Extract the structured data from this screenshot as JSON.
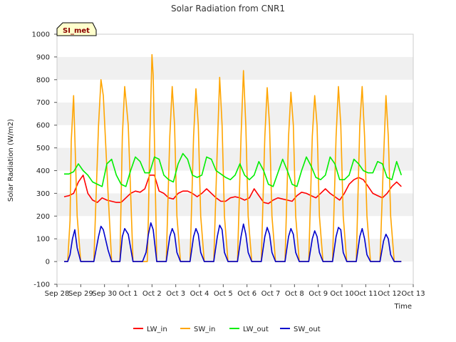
{
  "chart_data": {
    "type": "line",
    "title": "Solar Radiation from CNR1",
    "xlabel": "Time",
    "ylabel": "Solar Radiation (W/m2)",
    "ylim": [
      -100,
      1000
    ],
    "yticks": [
      -100,
      0,
      100,
      200,
      300,
      400,
      500,
      600,
      700,
      800,
      900,
      1000
    ],
    "xlim": [
      0,
      15
    ],
    "xticks": [
      {
        "x": 0,
        "label": "Sep 28"
      },
      {
        "x": 1,
        "label": "Sep 29"
      },
      {
        "x": 2,
        "label": "Sep 30"
      },
      {
        "x": 3,
        "label": "Oct 1"
      },
      {
        "x": 4,
        "label": "Oct 2"
      },
      {
        "x": 5,
        "label": "Oct 3"
      },
      {
        "x": 6,
        "label": "Oct 4"
      },
      {
        "x": 7,
        "label": "Oct 5"
      },
      {
        "x": 8,
        "label": "Oct 6"
      },
      {
        "x": 9,
        "label": "Oct 7"
      },
      {
        "x": 10,
        "label": "Oct 8"
      },
      {
        "x": 11,
        "label": "Oct 9"
      },
      {
        "x": 12,
        "label": "Oct 10"
      },
      {
        "x": 13,
        "label": "Oct 11"
      },
      {
        "x": 14,
        "label": "Oct 12"
      },
      {
        "x": 15,
        "label": "Oct 13"
      }
    ],
    "x_units": "days since Sep 28 00:00",
    "grid": "horizontal alternating bands",
    "legend_position": "bottom",
    "badge": "SI_met",
    "series": [
      {
        "name": "LW_in",
        "color": "#ff0000",
        "x": [
          0.3,
          0.5,
          0.7,
          0.9,
          1.1,
          1.3,
          1.5,
          1.7,
          1.9,
          2.1,
          2.3,
          2.5,
          2.7,
          2.9,
          3.1,
          3.3,
          3.5,
          3.7,
          3.9,
          4.1,
          4.3,
          4.5,
          4.7,
          4.9,
          5.1,
          5.3,
          5.5,
          5.7,
          5.9,
          6.1,
          6.3,
          6.5,
          6.7,
          6.9,
          7.1,
          7.3,
          7.5,
          7.7,
          7.9,
          8.1,
          8.3,
          8.5,
          8.7,
          8.9,
          9.1,
          9.3,
          9.5,
          9.7,
          9.9,
          10.1,
          10.3,
          10.5,
          10.7,
          10.9,
          11.1,
          11.3,
          11.5,
          11.7,
          11.9,
          12.1,
          12.3,
          12.5,
          12.7,
          12.9,
          13.1,
          13.3,
          13.5,
          13.7,
          13.9,
          14.1,
          14.3,
          14.5
        ],
        "y": [
          285,
          290,
          300,
          350,
          380,
          300,
          270,
          260,
          280,
          270,
          265,
          260,
          260,
          280,
          300,
          310,
          305,
          320,
          380,
          380,
          310,
          300,
          280,
          275,
          300,
          310,
          310,
          300,
          285,
          300,
          320,
          300,
          280,
          265,
          265,
          280,
          285,
          280,
          270,
          280,
          320,
          290,
          260,
          255,
          270,
          280,
          275,
          270,
          265,
          290,
          305,
          300,
          290,
          280,
          300,
          320,
          300,
          285,
          270,
          300,
          340,
          360,
          370,
          360,
          330,
          300,
          290,
          280,
          300,
          330,
          350,
          330
        ]
      },
      {
        "name": "SW_in",
        "color": "#ffa500",
        "x": [
          0.3,
          0.45,
          0.55,
          0.6,
          0.7,
          0.85,
          1.0,
          1.2,
          1.4,
          1.55,
          1.75,
          1.85,
          1.95,
          2.15,
          2.3,
          2.5,
          2.65,
          2.75,
          2.85,
          3.0,
          3.2,
          3.4,
          3.6,
          3.8,
          3.85,
          3.9,
          4.0,
          4.05,
          4.2,
          4.4,
          4.6,
          4.75,
          4.85,
          4.95,
          5.05,
          5.2,
          5.4,
          5.6,
          5.75,
          5.85,
          5.95,
          6.05,
          6.2,
          6.4,
          6.6,
          6.75,
          6.85,
          6.95,
          7.05,
          7.2,
          7.4,
          7.6,
          7.75,
          7.85,
          7.95,
          8.05,
          8.2,
          8.4,
          8.6,
          8.75,
          8.85,
          8.95,
          9.05,
          9.2,
          9.4,
          9.6,
          9.75,
          9.85,
          9.95,
          10.05,
          10.2,
          10.4,
          10.6,
          10.75,
          10.85,
          10.95,
          11.05,
          11.2,
          11.4,
          11.6,
          11.75,
          11.85,
          11.95,
          12.05,
          12.2,
          12.4,
          12.6,
          12.75,
          12.85,
          12.95,
          13.05,
          13.2,
          13.4,
          13.6,
          13.75,
          13.85,
          13.95,
          14.05,
          14.2,
          14.5
        ],
        "y": [
          0,
          0,
          180,
          530,
          730,
          200,
          0,
          0,
          0,
          0,
          600,
          800,
          730,
          300,
          0,
          0,
          0,
          550,
          770,
          600,
          0,
          0,
          0,
          0,
          200,
          500,
          910,
          820,
          0,
          0,
          0,
          550,
          770,
          600,
          200,
          0,
          0,
          0,
          550,
          760,
          600,
          200,
          0,
          0,
          0,
          500,
          810,
          600,
          200,
          0,
          0,
          0,
          550,
          840,
          600,
          200,
          0,
          0,
          0,
          550,
          765,
          600,
          200,
          0,
          0,
          0,
          550,
          745,
          600,
          200,
          0,
          0,
          0,
          550,
          730,
          600,
          200,
          0,
          0,
          0,
          550,
          770,
          600,
          200,
          0,
          0,
          0,
          600,
          770,
          550,
          200,
          0,
          0,
          0,
          450,
          730,
          550,
          200,
          0,
          0
        ]
      },
      {
        "name": "LW_out",
        "color": "#00ee00",
        "x": [
          0.3,
          0.5,
          0.7,
          0.9,
          1.1,
          1.3,
          1.5,
          1.7,
          1.9,
          2.1,
          2.3,
          2.5,
          2.7,
          2.9,
          3.1,
          3.3,
          3.5,
          3.7,
          3.9,
          4.1,
          4.3,
          4.5,
          4.7,
          4.9,
          5.1,
          5.3,
          5.5,
          5.7,
          5.9,
          6.1,
          6.3,
          6.5,
          6.7,
          6.9,
          7.1,
          7.3,
          7.5,
          7.7,
          7.9,
          8.1,
          8.3,
          8.5,
          8.7,
          8.9,
          9.1,
          9.3,
          9.5,
          9.7,
          9.9,
          10.1,
          10.3,
          10.5,
          10.7,
          10.9,
          11.1,
          11.3,
          11.5,
          11.7,
          11.9,
          12.1,
          12.3,
          12.5,
          12.7,
          12.9,
          13.1,
          13.3,
          13.5,
          13.7,
          13.9,
          14.1,
          14.3,
          14.5
        ],
        "y": [
          385,
          385,
          395,
          430,
          400,
          380,
          350,
          340,
          330,
          430,
          450,
          380,
          340,
          330,
          400,
          460,
          440,
          390,
          390,
          460,
          450,
          380,
          360,
          350,
          430,
          475,
          450,
          380,
          370,
          380,
          460,
          450,
          400,
          385,
          370,
          360,
          380,
          430,
          380,
          360,
          380,
          440,
          400,
          340,
          330,
          390,
          450,
          400,
          340,
          330,
          400,
          460,
          420,
          370,
          360,
          380,
          460,
          430,
          360,
          360,
          380,
          450,
          430,
          400,
          390,
          390,
          440,
          430,
          370,
          360,
          440,
          380
        ]
      },
      {
        "name": "SW_out",
        "color": "#0000cc",
        "x": [
          0.3,
          0.45,
          0.55,
          0.65,
          0.75,
          0.85,
          1.0,
          1.2,
          1.4,
          1.55,
          1.75,
          1.85,
          1.95,
          2.15,
          2.3,
          2.5,
          2.65,
          2.75,
          2.85,
          3.0,
          3.2,
          3.4,
          3.6,
          3.75,
          3.85,
          3.95,
          4.05,
          4.2,
          4.4,
          4.6,
          4.75,
          4.85,
          4.95,
          5.05,
          5.2,
          5.4,
          5.6,
          5.75,
          5.85,
          5.95,
          6.05,
          6.2,
          6.4,
          6.6,
          6.75,
          6.85,
          6.95,
          7.05,
          7.2,
          7.4,
          7.6,
          7.75,
          7.85,
          7.95,
          8.05,
          8.2,
          8.4,
          8.6,
          8.75,
          8.85,
          8.95,
          9.05,
          9.2,
          9.4,
          9.6,
          9.75,
          9.85,
          9.95,
          10.05,
          10.2,
          10.4,
          10.6,
          10.75,
          10.85,
          10.95,
          11.05,
          11.2,
          11.4,
          11.6,
          11.75,
          11.85,
          11.95,
          12.05,
          12.2,
          12.4,
          12.6,
          12.75,
          12.85,
          12.95,
          13.05,
          13.2,
          13.4,
          13.6,
          13.75,
          13.85,
          13.95,
          14.05,
          14.2,
          14.5
        ],
        "y": [
          0,
          0,
          30,
          100,
          140,
          60,
          0,
          0,
          0,
          0,
          110,
          155,
          140,
          50,
          0,
          0,
          0,
          110,
          145,
          120,
          0,
          0,
          0,
          40,
          120,
          170,
          140,
          0,
          0,
          0,
          110,
          145,
          120,
          40,
          0,
          0,
          0,
          110,
          145,
          120,
          40,
          0,
          0,
          0,
          110,
          160,
          140,
          40,
          0,
          0,
          0,
          110,
          165,
          120,
          40,
          0,
          0,
          0,
          110,
          150,
          120,
          40,
          0,
          0,
          0,
          110,
          145,
          120,
          40,
          0,
          0,
          0,
          100,
          135,
          110,
          40,
          0,
          0,
          0,
          110,
          150,
          140,
          40,
          0,
          0,
          0,
          110,
          145,
          100,
          30,
          0,
          0,
          0,
          90,
          120,
          100,
          30,
          0,
          0
        ]
      }
    ]
  }
}
